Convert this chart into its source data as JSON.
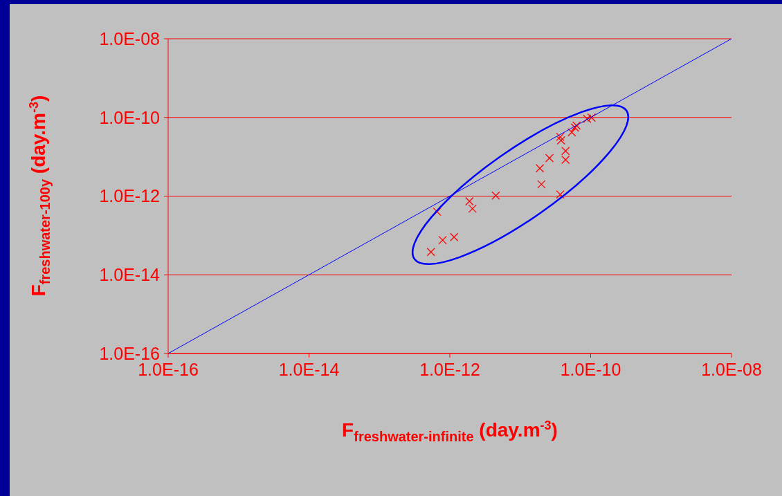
{
  "chart_data": {
    "type": "scatter",
    "xlabel": "F$_{freshwater-infinite}$ (day.m$^{-3}$)",
    "ylabel": "F$_{freshwater-100y}$ (day.m$^{-3}$)",
    "log": "xy",
    "grid": "y",
    "marker": "cross",
    "xlim": [
      1e-16,
      1e-08
    ],
    "ylim": [
      1e-16,
      1e-08
    ],
    "xticks": [
      {
        "value": 1e-16,
        "label": "1.0E-16"
      },
      {
        "value": 1e-14,
        "label": "1.0E-14"
      },
      {
        "value": 1e-12,
        "label": "1.0E-12"
      },
      {
        "value": 1e-10,
        "label": "1.0E-10"
      },
      {
        "value": 1e-08,
        "label": "1.0E-08"
      }
    ],
    "yticks": [
      {
        "value": 1e-16,
        "label": "1.0E-16"
      },
      {
        "value": 1e-14,
        "label": "1.0E-14"
      },
      {
        "value": 1e-12,
        "label": "1.0E-12"
      },
      {
        "value": 1e-10,
        "label": "1.0E-10"
      },
      {
        "value": 1e-08,
        "label": "1.0E-08"
      }
    ],
    "series": [
      {
        "color": "#ff0000",
        "x": [
          5.4e-13,
          7.9e-13,
          1.15e-12,
          6.6e-13,
          1.9e-12,
          2.1e-12,
          4.5e-12,
          2e-11,
          1.9e-11,
          2.6e-11,
          3.7e-11,
          4.4e-11,
          4.4e-11,
          3.7e-11,
          3.8e-11,
          5.4e-11,
          6e-11,
          6.3e-11,
          8.9e-11,
          1.03e-10
        ],
        "values": [
          3.8e-14,
          7.6e-14,
          9.1e-14,
          4e-13,
          7.4e-13,
          4.8e-13,
          1.03e-12,
          2e-12,
          5.1e-12,
          9.3e-12,
          1.1e-12,
          1.4e-11,
          8.4e-12,
          3.2e-11,
          2.6e-11,
          4.2e-11,
          5.5e-11,
          6.2e-11,
          9.2e-11,
          9.9e-11
        ]
      },
      {
        "type": "line",
        "color": "#0000ff",
        "marker": "none",
        "x": [
          1e-16,
          1e-08
        ],
        "values": [
          1e-16,
          1e-08
        ]
      }
    ]
  }
}
